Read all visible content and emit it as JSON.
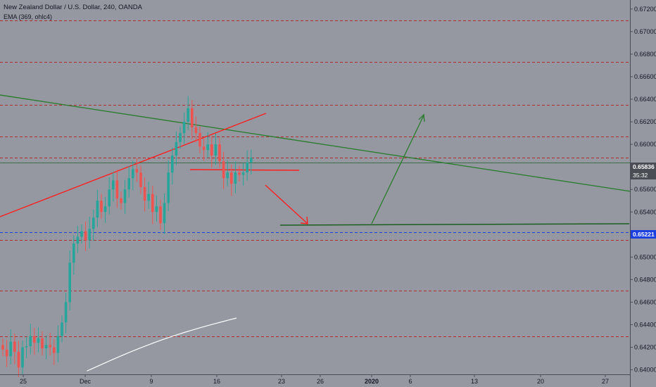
{
  "header": {
    "symbol_title": "New Zealand Dollar / U.S. Dollar, 240, OANDA",
    "indicator_title": "EMA (369, ohlc4)"
  },
  "price_axis": {
    "ticks": [
      "0.67200",
      "0.67000",
      "0.66800",
      "0.66600",
      "0.66400",
      "0.66200",
      "0.66000",
      "0.65600",
      "0.65400",
      "0.65000",
      "0.64800",
      "0.64600",
      "0.64400",
      "0.64200",
      "0.64000"
    ],
    "current_price": "0.65836",
    "countdown": "35:32",
    "level_label": "0.65221"
  },
  "time_axis": {
    "ticks": [
      "25",
      "Dec",
      "9",
      "16",
      "23",
      "26",
      "2020",
      "6",
      "13",
      "20",
      "27"
    ]
  },
  "colors": {
    "background": "#9598a1",
    "bull_candle": "#26a69a",
    "bear_candle": "#ef5350",
    "trend_green": "#2e7d32",
    "trend_red": "#ff1f1f",
    "dash_red": "#b22a2a",
    "dash_blue": "#1c3fe0",
    "ema": "#ffffff"
  },
  "chart_data": {
    "type": "candlestick",
    "symbol": "NZDUSD",
    "timeframe": "240",
    "y_range": [
      0.6396,
      0.6728
    ],
    "horizontal_levels": [
      0.671,
      0.6673,
      0.6635,
      0.6607,
      0.6588,
      0.6522,
      0.6515,
      0.647,
      0.643
    ],
    "close_series": [
      0.6418,
      0.6412,
      0.6425,
      0.6416,
      0.6402,
      0.642,
      0.6421,
      0.643,
      0.6424,
      0.6428,
      0.6419,
      0.6422,
      0.642,
      0.6415,
      0.643,
      0.6442,
      0.646,
      0.6495,
      0.6512,
      0.6518,
      0.6523,
      0.6515,
      0.6525,
      0.6535,
      0.655,
      0.654,
      0.6545,
      0.656,
      0.6568,
      0.6552,
      0.6548,
      0.656,
      0.657,
      0.6578,
      0.6575,
      0.6562,
      0.655,
      0.6556,
      0.654,
      0.6545,
      0.653,
      0.6548,
      0.6575,
      0.659,
      0.6602,
      0.661,
      0.662,
      0.6632,
      0.6615,
      0.661,
      0.6598,
      0.6595,
      0.66,
      0.659,
      0.66,
      0.6585,
      0.657,
      0.6575,
      0.6565,
      0.6575,
      0.6573,
      0.6575,
      0.6584,
      0.6588
    ],
    "ema_x": [
      0.138,
      0.375
    ],
    "ema_y": [
      0.6399,
      0.645
    ]
  }
}
